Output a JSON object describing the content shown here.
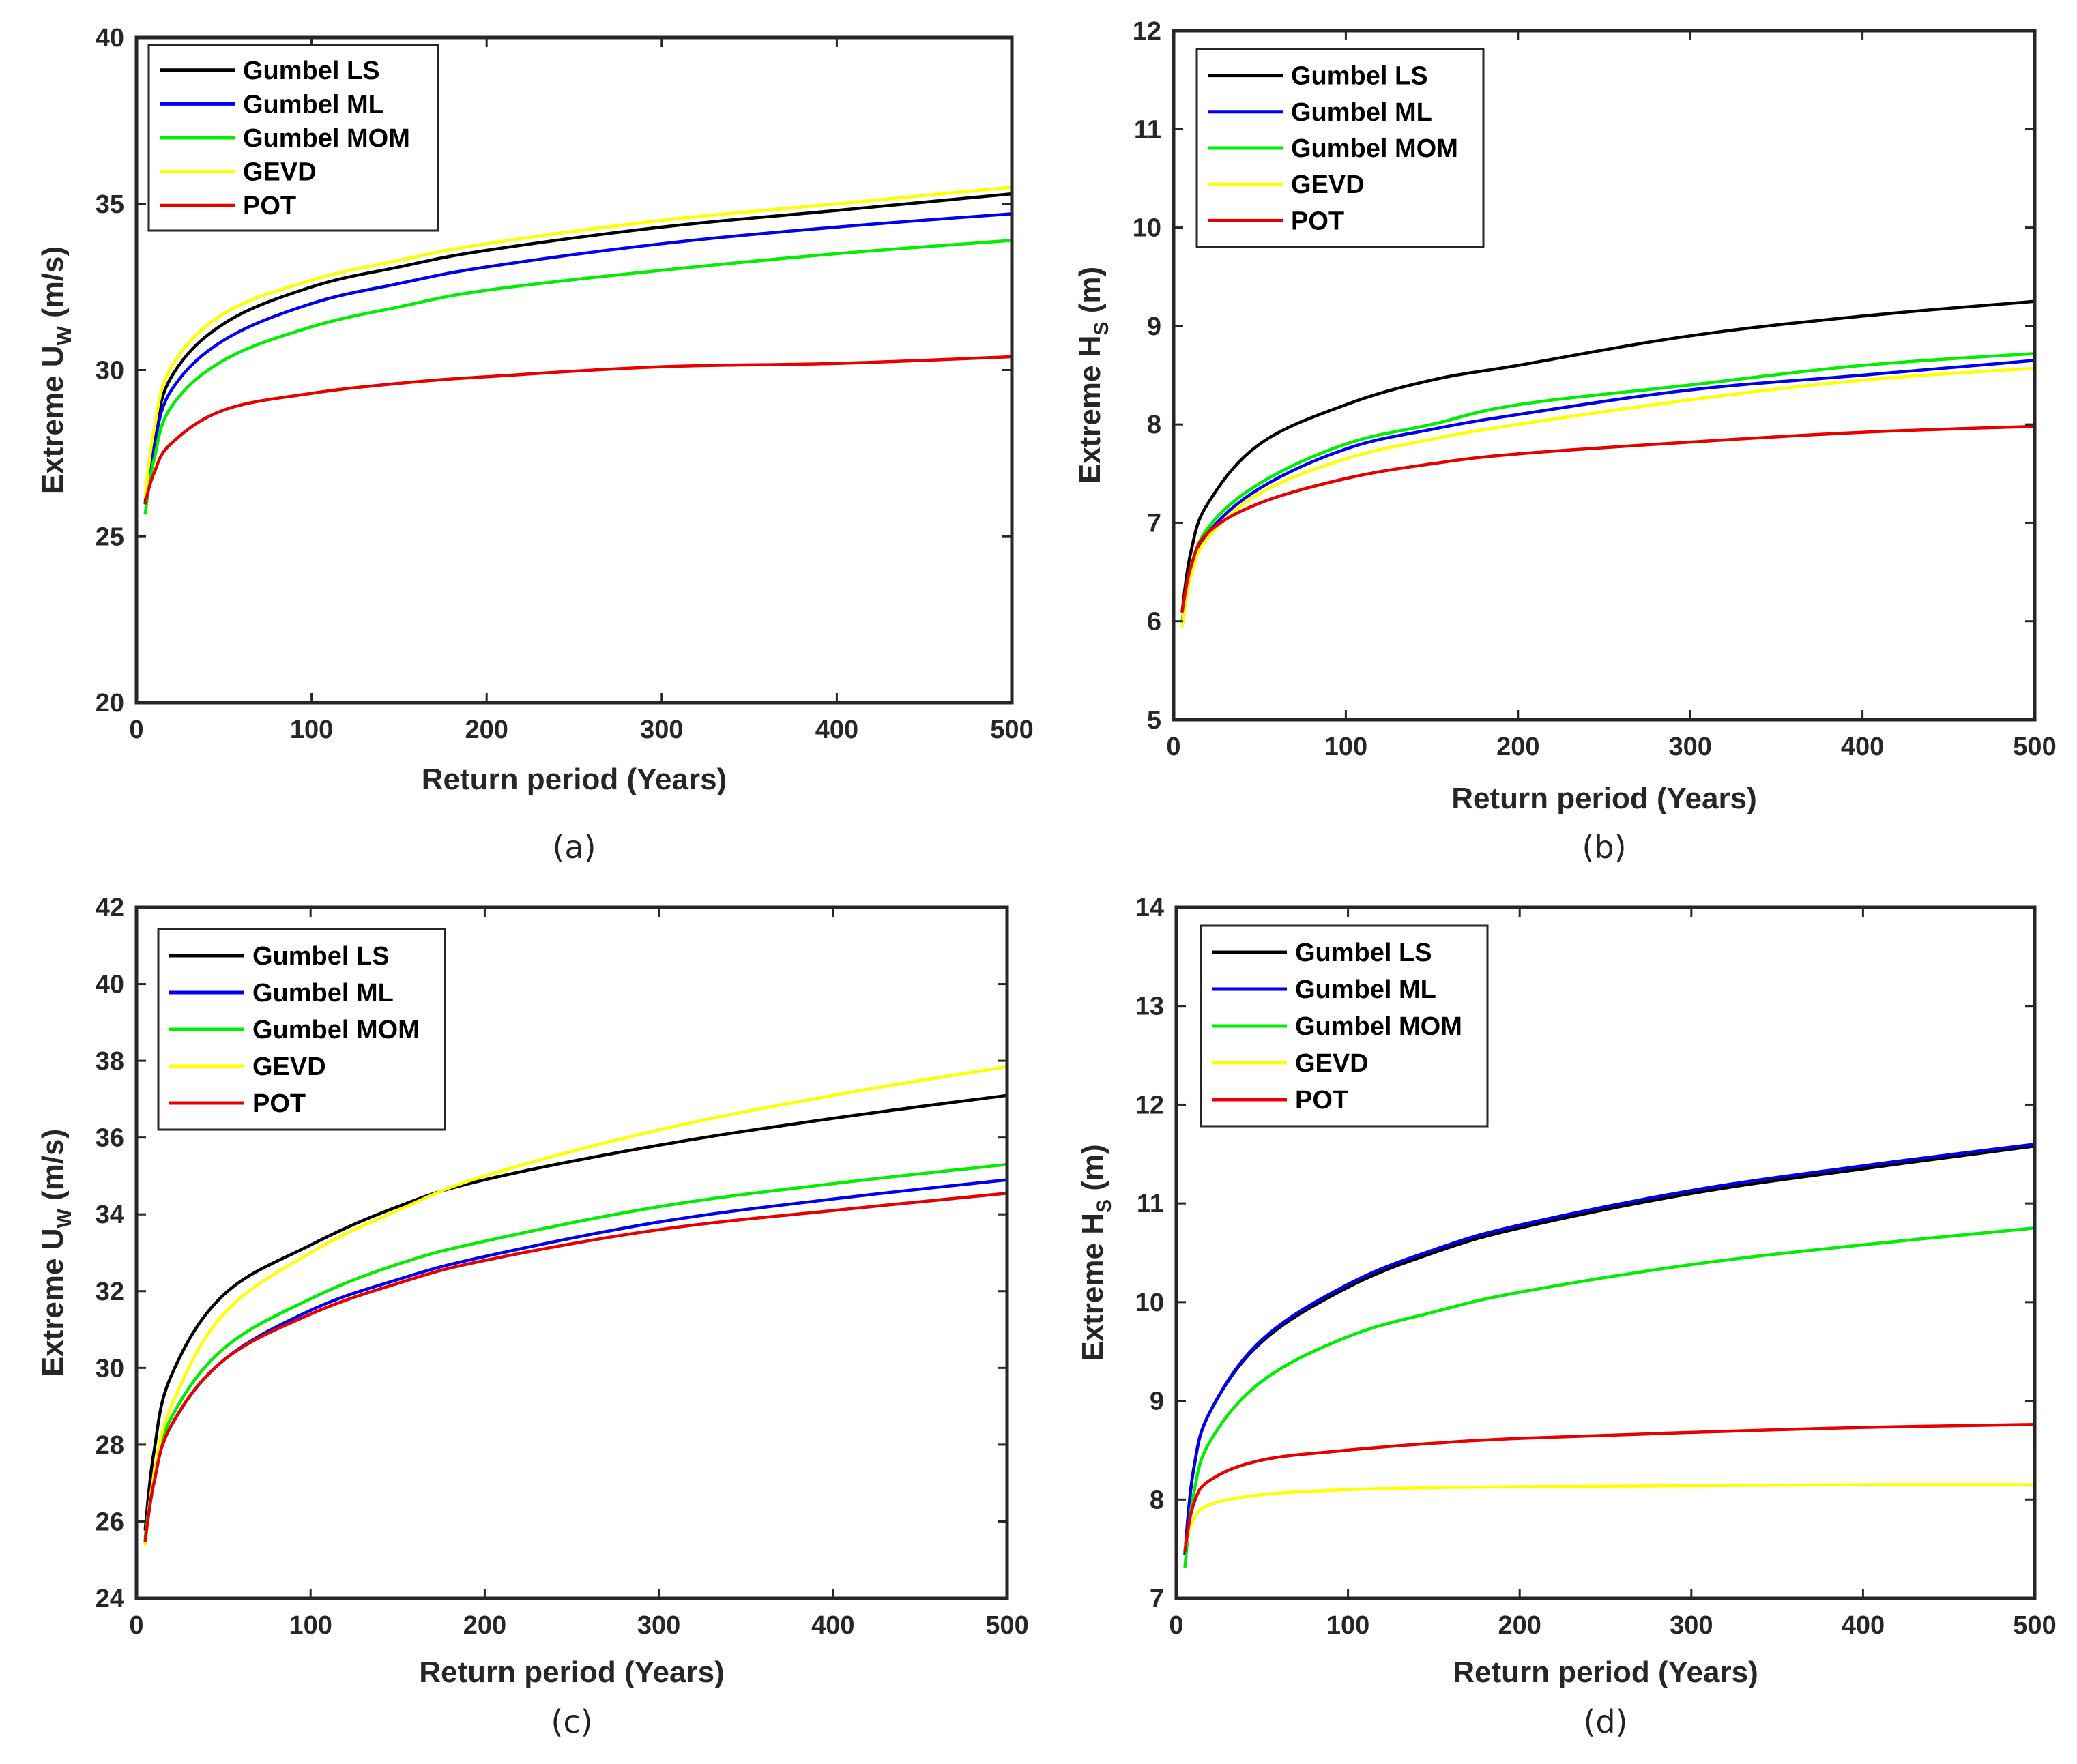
{
  "figure": {
    "captions": [
      "(a)",
      "(b)",
      "(c)",
      "(d)"
    ]
  },
  "series_colors": {
    "Gumbel LS": "#000000",
    "Gumbel ML": "#0000ee",
    "Gumbel MOM": "#00ee00",
    "GEVD": "#ffff00",
    "POT": "#e60000"
  },
  "chart_data": [
    {
      "type": "line",
      "panel": "a",
      "caption": "(a)",
      "xlabel": "Return period (Years)",
      "ylabel": {
        "main": "Extreme U",
        "sub": "W",
        "unit": " (m/s)"
      },
      "xlim": [
        0,
        500
      ],
      "ylim": [
        20,
        40
      ],
      "xticks": [
        0,
        100,
        200,
        300,
        400,
        500
      ],
      "yticks": [
        20,
        25,
        30,
        35,
        40
      ],
      "legend_position": "top-left",
      "x": [
        5,
        10,
        20,
        50,
        100,
        150,
        200,
        300,
        400,
        500
      ],
      "series": [
        {
          "name": "Gumbel LS",
          "values": [
            26.0,
            27.9,
            29.8,
            31.4,
            32.5,
            33.1,
            33.6,
            34.3,
            34.8,
            35.3
          ]
        },
        {
          "name": "Gumbel ML",
          "values": [
            26.0,
            27.7,
            29.4,
            30.9,
            32.0,
            32.6,
            33.1,
            33.8,
            34.3,
            34.7
          ]
        },
        {
          "name": "Gumbel MOM",
          "values": [
            25.7,
            27.3,
            28.9,
            30.3,
            31.3,
            31.9,
            32.4,
            33.0,
            33.5,
            33.9
          ]
        },
        {
          "name": "GEVD",
          "values": [
            26.2,
            28.2,
            30.1,
            31.7,
            32.7,
            33.3,
            33.8,
            34.5,
            35.0,
            35.5
          ]
        },
        {
          "name": "POT",
          "values": [
            26.0,
            26.9,
            27.8,
            28.8,
            29.3,
            29.6,
            29.8,
            30.1,
            30.2,
            30.4
          ]
        }
      ]
    },
    {
      "type": "line",
      "panel": "b",
      "caption": "(b)",
      "xlabel": "Return period (Years)",
      "ylabel": {
        "main": "Extreme H",
        "sub": "S",
        "unit": " (m)"
      },
      "xlim": [
        0,
        500
      ],
      "ylim": [
        5,
        12
      ],
      "xticks": [
        0,
        100,
        200,
        300,
        400,
        500
      ],
      "yticks": [
        5,
        6,
        7,
        8,
        9,
        10,
        11,
        12
      ],
      "legend_position": "top-left",
      "x": [
        5,
        10,
        20,
        50,
        100,
        150,
        200,
        300,
        400,
        500
      ],
      "series": [
        {
          "name": "Gumbel LS",
          "values": [
            6.1,
            6.7,
            7.2,
            7.8,
            8.2,
            8.45,
            8.6,
            8.9,
            9.1,
            9.25
          ]
        },
        {
          "name": "Gumbel ML",
          "values": [
            6.0,
            6.5,
            6.9,
            7.35,
            7.75,
            7.95,
            8.1,
            8.35,
            8.5,
            8.65
          ]
        },
        {
          "name": "Gumbel MOM",
          "values": [
            6.0,
            6.5,
            6.95,
            7.4,
            7.8,
            8.0,
            8.2,
            8.4,
            8.6,
            8.72
          ]
        },
        {
          "name": "GEVD",
          "values": [
            5.95,
            6.45,
            6.85,
            7.3,
            7.65,
            7.85,
            8.0,
            8.25,
            8.45,
            8.57
          ]
        },
        {
          "name": "POT",
          "values": [
            6.1,
            6.55,
            6.9,
            7.2,
            7.45,
            7.6,
            7.7,
            7.82,
            7.92,
            7.98
          ]
        }
      ]
    },
    {
      "type": "line",
      "panel": "c",
      "caption": "(c)",
      "xlabel": "Return period (Years)",
      "ylabel": {
        "main": "Extreme U",
        "sub": "W",
        "unit": " (m/s)"
      },
      "xlim": [
        0,
        500
      ],
      "ylim": [
        24,
        42
      ],
      "xticks": [
        0,
        100,
        200,
        300,
        400,
        500
      ],
      "yticks": [
        24,
        26,
        28,
        30,
        32,
        34,
        36,
        38,
        40,
        42
      ],
      "legend_position": "top-left",
      "x": [
        5,
        10,
        20,
        50,
        100,
        150,
        200,
        300,
        400,
        500
      ],
      "series": [
        {
          "name": "Gumbel LS",
          "values": [
            25.8,
            27.8,
            29.8,
            31.9,
            33.2,
            34.2,
            34.9,
            35.8,
            36.5,
            37.1
          ]
        },
        {
          "name": "Gumbel ML",
          "values": [
            25.5,
            27.0,
            28.5,
            30.2,
            31.5,
            32.3,
            32.9,
            33.8,
            34.4,
            34.9
          ]
        },
        {
          "name": "Gumbel MOM",
          "values": [
            25.6,
            27.1,
            28.7,
            30.5,
            31.8,
            32.7,
            33.3,
            34.2,
            34.8,
            35.3
          ]
        },
        {
          "name": "GEVD",
          "values": [
            25.4,
            27.2,
            29.0,
            31.4,
            33.0,
            34.1,
            35.0,
            36.2,
            37.1,
            37.85
          ]
        },
        {
          "name": "POT",
          "values": [
            25.5,
            27.0,
            28.5,
            30.2,
            31.4,
            32.2,
            32.8,
            33.6,
            34.1,
            34.55
          ]
        }
      ]
    },
    {
      "type": "line",
      "panel": "d",
      "caption": "(d)",
      "xlabel": "Return period (Years)",
      "ylabel": {
        "main": "Extreme H",
        "sub": "S",
        "unit": " (m)"
      },
      "xlim": [
        0,
        500
      ],
      "ylim": [
        7,
        14
      ],
      "xticks": [
        0,
        100,
        200,
        300,
        400,
        500
      ],
      "yticks": [
        7,
        8,
        9,
        10,
        11,
        12,
        13,
        14
      ],
      "legend_position": "top-left",
      "x": [
        5,
        10,
        20,
        50,
        100,
        150,
        200,
        300,
        400,
        500
      ],
      "series": [
        {
          "name": "Gumbel LS",
          "values": [
            7.45,
            8.3,
            8.9,
            9.6,
            10.15,
            10.5,
            10.75,
            11.1,
            11.35,
            11.58
          ]
        },
        {
          "name": "Gumbel ML",
          "values": [
            7.45,
            8.3,
            8.9,
            9.62,
            10.18,
            10.53,
            10.78,
            11.13,
            11.38,
            11.6
          ]
        },
        {
          "name": "Gumbel MOM",
          "values": [
            7.32,
            8.05,
            8.6,
            9.2,
            9.65,
            9.9,
            10.1,
            10.38,
            10.58,
            10.75
          ]
        },
        {
          "name": "GEVD",
          "values": [
            7.5,
            7.8,
            7.95,
            8.05,
            8.1,
            8.12,
            8.13,
            8.14,
            8.15,
            8.15
          ]
        },
        {
          "name": "POT",
          "values": [
            7.48,
            7.95,
            8.2,
            8.4,
            8.5,
            8.57,
            8.62,
            8.68,
            8.73,
            8.76
          ]
        }
      ]
    }
  ]
}
